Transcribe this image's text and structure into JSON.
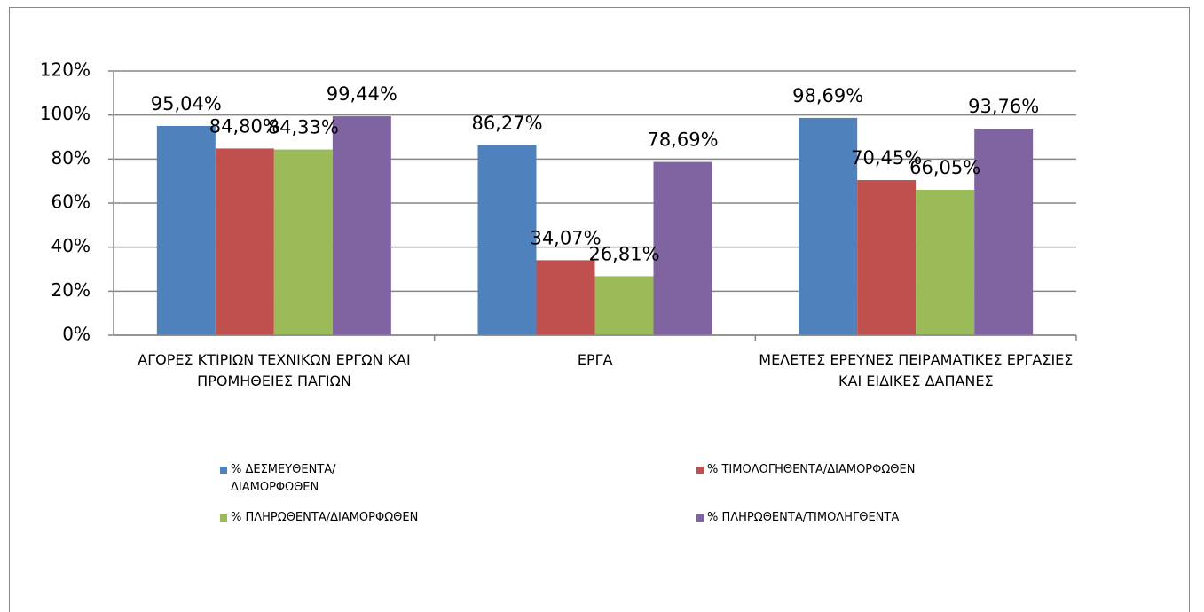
{
  "chart_data": {
    "type": "bar",
    "categories": [
      "ΑΓΟΡΕΣ ΚΤΙΡΙΩΝ ΤΕΧΝΙΚΩΝ ΕΡΓΩΝ ΚΑΙ ΠΡΟΜΗΘΕΙΕΣ ΠΑΓΙΩΝ",
      "ΕΡΓΑ",
      "ΜΕΛΕΤΕΣ ΕΡΕΥΝΕΣ ΠΕΙΡΑΜΑΤΙΚΕΣ ΕΡΓΑΣΙΕΣ ΚΑΙ ΕΙΔΙΚΕΣ ΔΑΠΑΝΕΣ"
    ],
    "series": [
      {
        "name": "% ΔΕΣΜΕΥΘΕΝΤΑ/ ΔΙΑΜΟΡΦΩΘΕΝ",
        "color": "#4f81bd",
        "values": [
          95.04,
          86.27,
          98.69
        ],
        "value_labels": [
          "95,04%",
          "86,27%",
          "98,69%"
        ]
      },
      {
        "name": "% ΤΙΜΟΛΟΓΗΘΕΝΤΑ/ΔΙΑΜΟΡΦΩΘΕΝ",
        "color": "#c0504d",
        "values": [
          84.8,
          34.07,
          70.45
        ],
        "value_labels": [
          "84,80%",
          "34,07%",
          "70,45%"
        ]
      },
      {
        "name": "% ΠΛΗΡΩΘΕΝΤΑ/ΔΙΑΜΟΡΦΩΘΕΝ",
        "color": "#9bbb59",
        "values": [
          84.33,
          26.81,
          66.05
        ],
        "value_labels": [
          "84,33%",
          "26,81%",
          "66,05%"
        ]
      },
      {
        "name": "% ΠΛΗΡΩΘΕΝΤΑ/ΤΙΜΟΛΗΓΘΕΝΤΑ",
        "color": "#8064a2",
        "values": [
          99.44,
          78.69,
          93.76
        ],
        "value_labels": [
          "99,44%",
          "78,69%",
          "93,76%"
        ]
      }
    ],
    "ylim": [
      0,
      120
    ],
    "yticks": [
      {
        "value": 0,
        "label": "0%"
      },
      {
        "value": 20,
        "label": "20%"
      },
      {
        "value": 40,
        "label": "40%"
      },
      {
        "value": 60,
        "label": "60%"
      },
      {
        "value": 80,
        "label": "80%"
      },
      {
        "value": 100,
        "label": "100%"
      },
      {
        "value": 120,
        "label": "120%"
      }
    ],
    "grid": true,
    "legend": "bottom"
  }
}
